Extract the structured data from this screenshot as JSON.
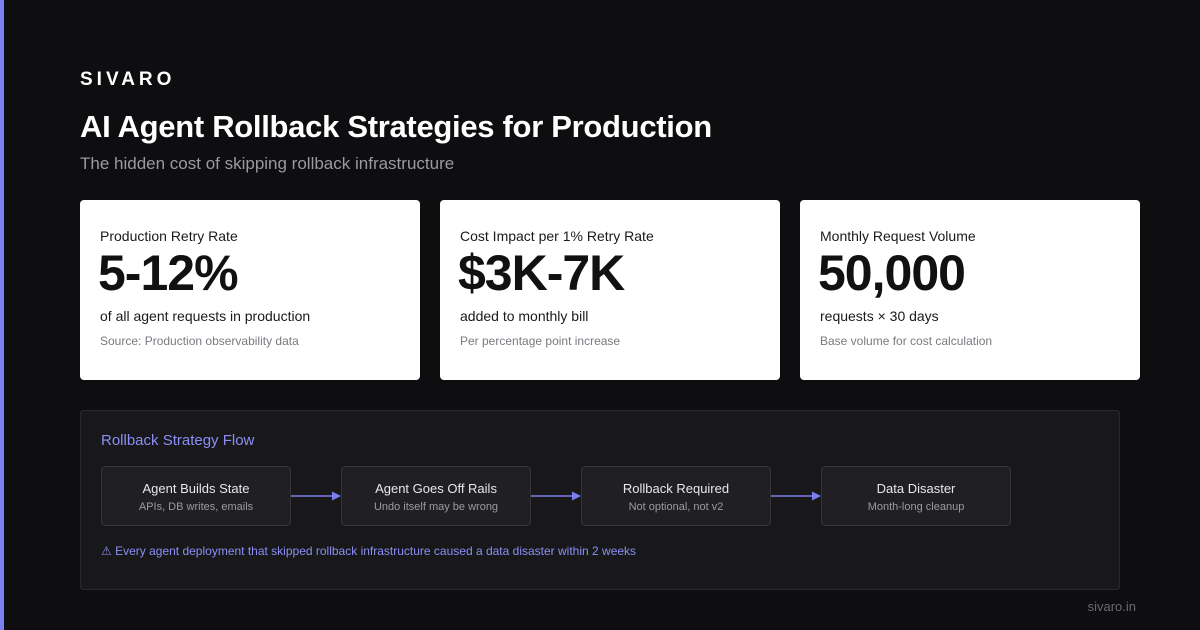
{
  "brand": "SIVARO",
  "title": "AI Agent Rollback Strategies for Production",
  "subtitle": "The hidden cost of skipping rollback infrastructure",
  "colors": {
    "accent": "#7b7ff0",
    "background": "#0e0e10",
    "card": "#ffffff",
    "flow_accent": "#8b8ff5"
  },
  "stats": [
    {
      "label": "Production Retry Rate",
      "value": "5-12%",
      "description": "of all agent requests in production",
      "source": "Source: Production observability data"
    },
    {
      "label": "Cost Impact per 1% Retry Rate",
      "value": "$3K-7K",
      "description": "added to monthly bill",
      "source": "Per percentage point increase"
    },
    {
      "label": "Monthly Request Volume",
      "value": "50,000",
      "description": "requests × 30 days",
      "source": "Base volume for cost calculation"
    }
  ],
  "flow": {
    "title": "Rollback Strategy Flow",
    "steps": [
      {
        "title": "Agent Builds State",
        "subtitle": "APIs, DB writes, emails"
      },
      {
        "title": "Agent Goes Off Rails",
        "subtitle": "Undo itself may be wrong"
      },
      {
        "title": "Rollback Required",
        "subtitle": "Not optional, not v2"
      },
      {
        "title": "Data Disaster",
        "subtitle": "Month-long cleanup"
      }
    ],
    "note": "⚠ Every agent deployment that skipped rollback infrastructure caused a data disaster within 2 weeks",
    "arrow_icon": "right-arrow-icon"
  },
  "footer": {
    "url": "sivaro.in"
  }
}
